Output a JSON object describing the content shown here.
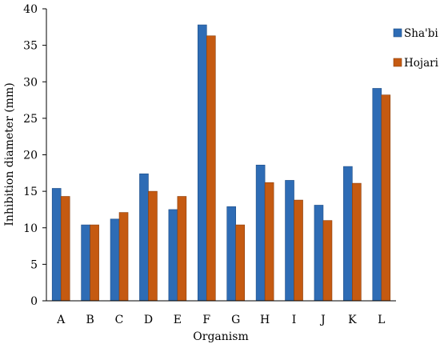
{
  "chart_data": {
    "type": "bar",
    "title": "",
    "xlabel": "Organism",
    "ylabel": "Inhibition diameter (mm)",
    "ylim": [
      0,
      40
    ],
    "yticks": [
      0,
      5,
      10,
      15,
      20,
      25,
      30,
      35,
      40
    ],
    "categories": [
      "A",
      "B",
      "C",
      "D",
      "E",
      "F",
      "G",
      "H",
      "I",
      "J",
      "K",
      "L"
    ],
    "series": [
      {
        "name": "Sha'bi",
        "color": "#2e6cb5",
        "edge": "#1f4e86",
        "values": [
          15.4,
          10.4,
          11.2,
          17.4,
          12.5,
          37.8,
          12.9,
          18.6,
          16.5,
          13.1,
          18.4,
          29.1
        ]
      },
      {
        "name": "Hojari",
        "color": "#c55a11",
        "edge": "#8a3f0c",
        "values": [
          14.3,
          10.4,
          12.1,
          15.0,
          14.3,
          36.3,
          10.4,
          16.2,
          13.8,
          11.0,
          16.1,
          28.2
        ]
      }
    ],
    "legend_position": "right",
    "grid": false
  }
}
